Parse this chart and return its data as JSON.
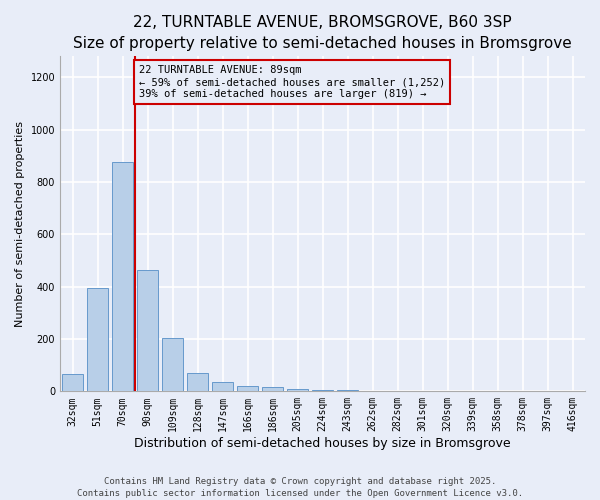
{
  "title": "22, TURNTABLE AVENUE, BROMSGROVE, B60 3SP",
  "subtitle": "Size of property relative to semi-detached houses in Bromsgrove",
  "xlabel": "Distribution of semi-detached houses by size in Bromsgrove",
  "ylabel": "Number of semi-detached properties",
  "categories": [
    "32sqm",
    "51sqm",
    "70sqm",
    "90sqm",
    "109sqm",
    "128sqm",
    "147sqm",
    "166sqm",
    "186sqm",
    "205sqm",
    "224sqm",
    "243sqm",
    "262sqm",
    "282sqm",
    "301sqm",
    "320sqm",
    "339sqm",
    "358sqm",
    "378sqm",
    "397sqm",
    "416sqm"
  ],
  "values": [
    65,
    395,
    875,
    462,
    205,
    70,
    35,
    22,
    15,
    10,
    7,
    5,
    3,
    2,
    1,
    1,
    0,
    0,
    0,
    0,
    0
  ],
  "bar_color": "#b8cfe8",
  "bar_edge_color": "#6699cc",
  "background_color": "#e8edf8",
  "grid_color": "#ffffff",
  "annotation_box_color": "#cc0000",
  "vline_color": "#cc0000",
  "annotation_title": "22 TURNTABLE AVENUE: 89sqm",
  "annotation_line1": "← 59% of semi-detached houses are smaller (1,252)",
  "annotation_line2": "39% of semi-detached houses are larger (819) →",
  "footer": "Contains HM Land Registry data © Crown copyright and database right 2025.\nContains public sector information licensed under the Open Government Licence v3.0.",
  "ylim": [
    0,
    1280
  ],
  "yticks": [
    0,
    200,
    400,
    600,
    800,
    1000,
    1200
  ],
  "title_fontsize": 11,
  "xlabel_fontsize": 9,
  "ylabel_fontsize": 8,
  "tick_fontsize": 7,
  "annotation_fontsize": 7.5,
  "footer_fontsize": 6.5
}
